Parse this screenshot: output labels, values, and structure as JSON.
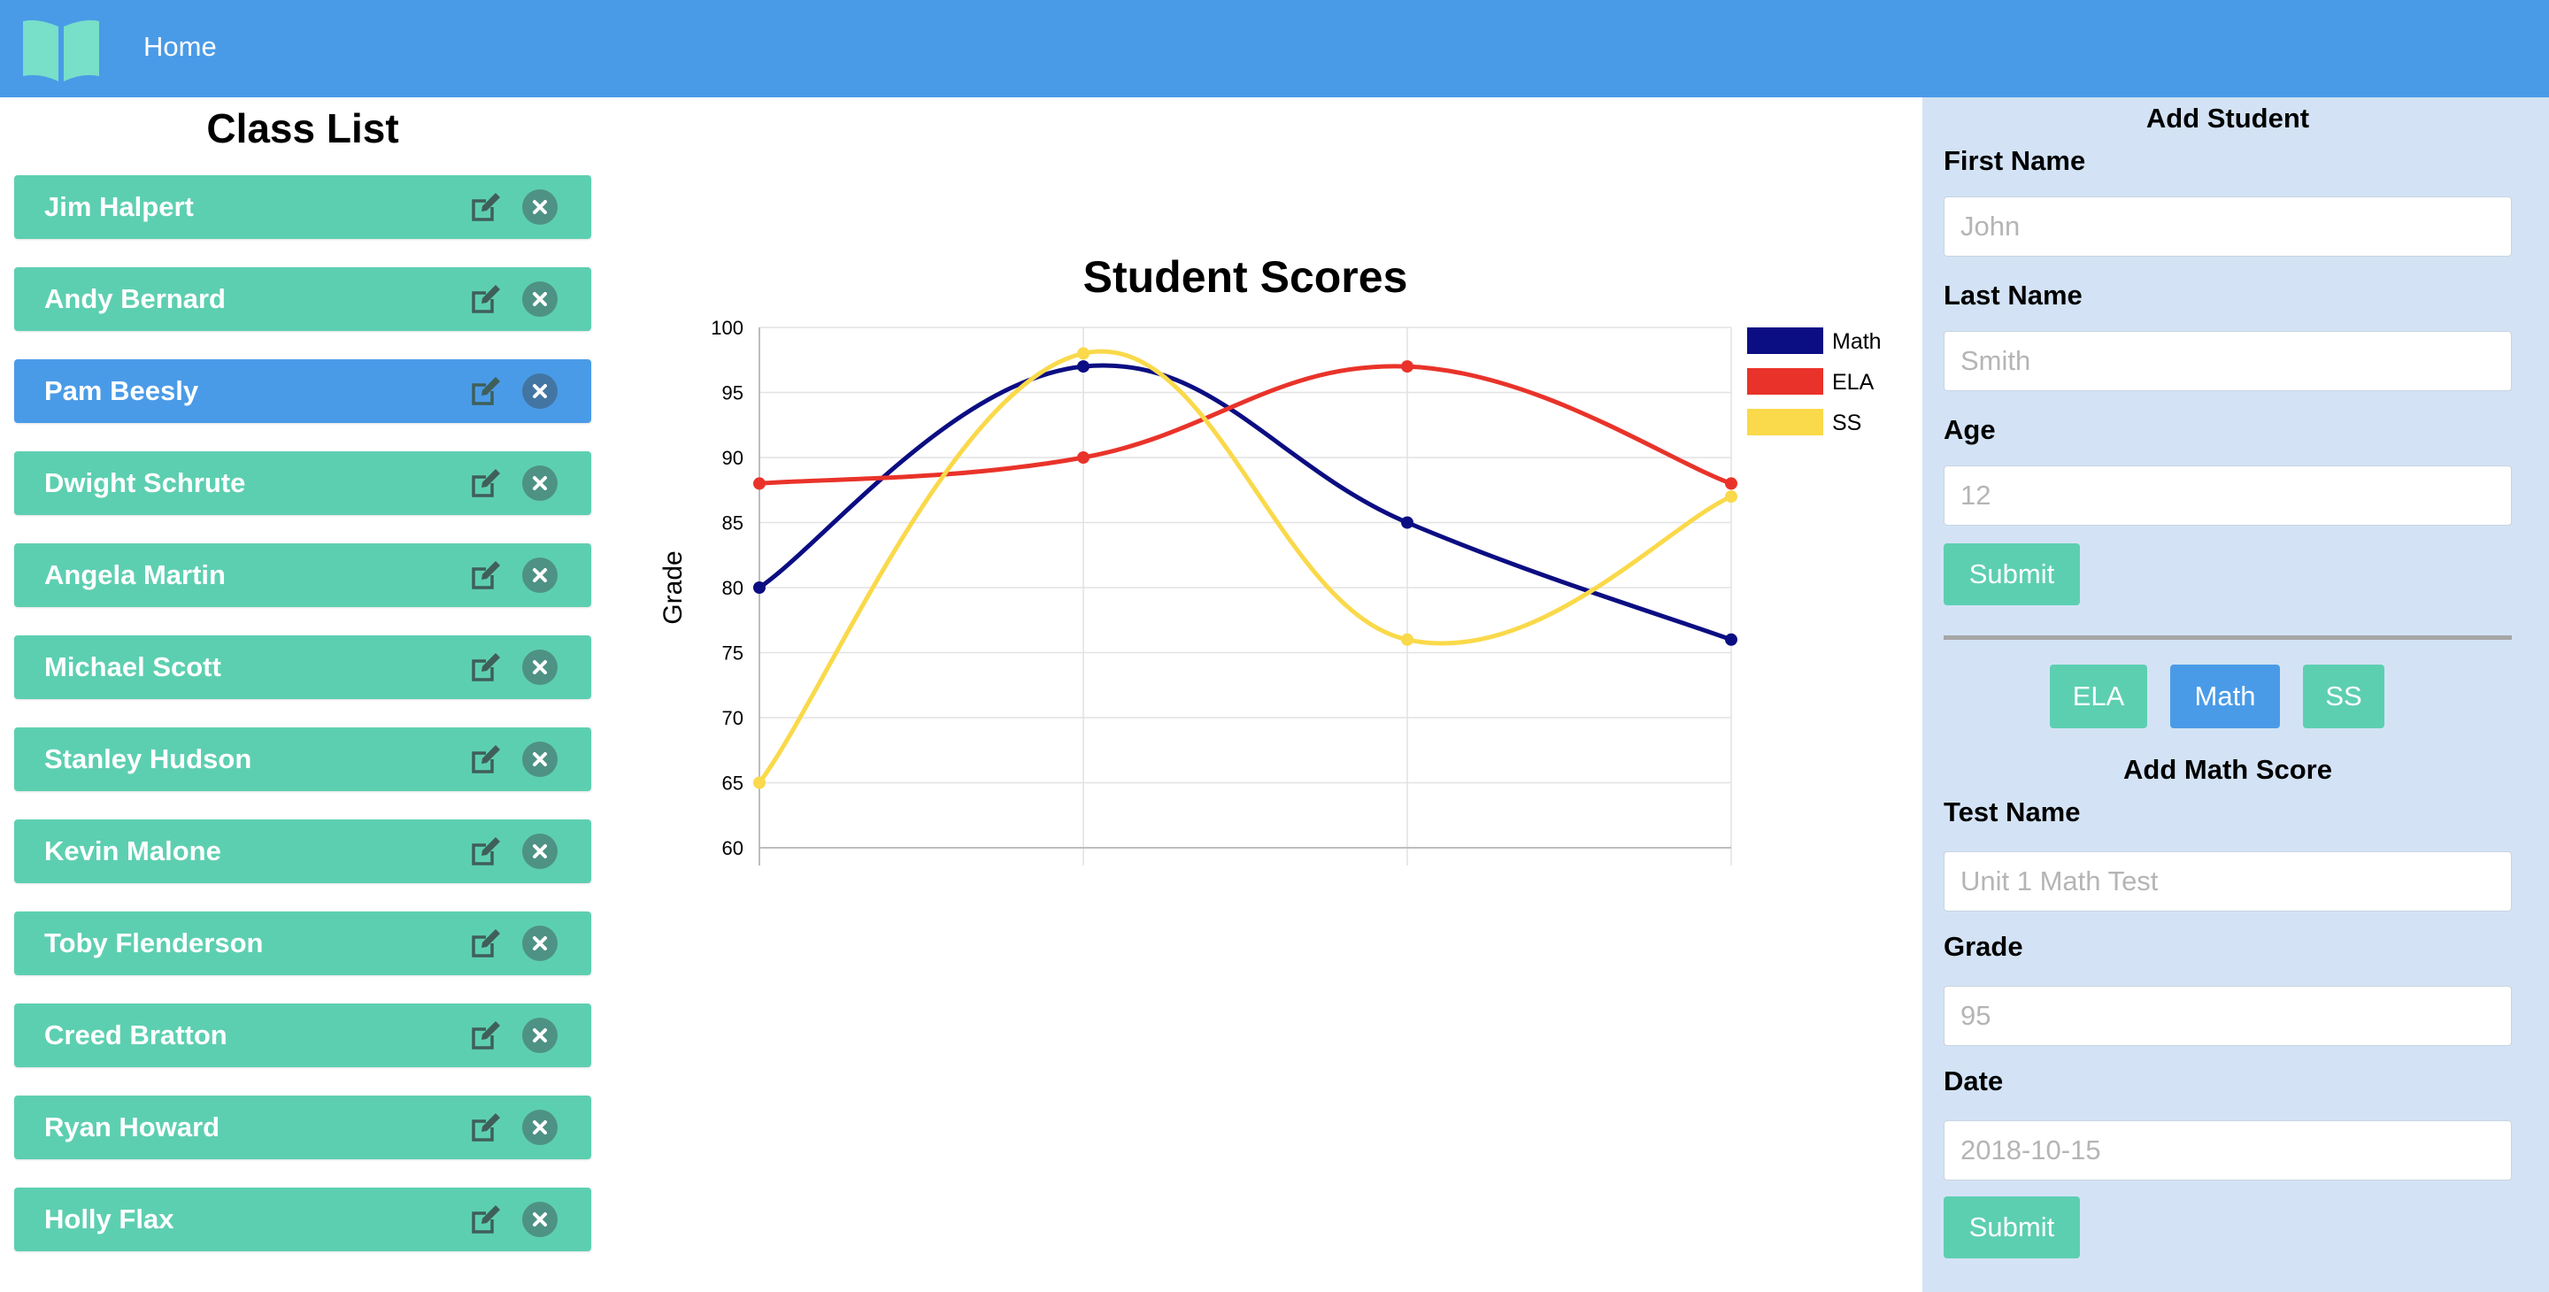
{
  "nav": {
    "home_label": "Home"
  },
  "class_list": {
    "title": "Class List",
    "selected_index": 2,
    "students": [
      "Jim Halpert",
      "Andy Bernard",
      "Pam Beesly",
      "Dwight Schrute",
      "Angela Martin",
      "Michael Scott",
      "Stanley Hudson",
      "Kevin Malone",
      "Toby Flenderson",
      "Creed Bratton",
      "Ryan Howard",
      "Holly Flax"
    ]
  },
  "chart_data": {
    "type": "line",
    "title": "Student Scores",
    "ylabel": "Grade",
    "xlabel": "",
    "ylim": [
      60,
      100
    ],
    "yticks": [
      100,
      95,
      90,
      85,
      80,
      75,
      70,
      65,
      60
    ],
    "x": [
      1,
      2,
      3,
      4
    ],
    "grid": true,
    "legend_position": "top-right",
    "series": [
      {
        "name": "Math",
        "color": "#0b0d82",
        "values": [
          80,
          97,
          85,
          76
        ]
      },
      {
        "name": "ELA",
        "color": "#e9332a",
        "values": [
          88,
          90,
          97,
          88
        ]
      },
      {
        "name": "SS",
        "color": "#fad94a",
        "values": [
          65,
          98,
          76,
          87
        ]
      }
    ]
  },
  "add_student": {
    "title": "Add Student",
    "first_name_label": "First Name",
    "first_name_placeholder": "John",
    "last_name_label": "Last Name",
    "last_name_placeholder": "Smith",
    "age_label": "Age",
    "age_placeholder": "12",
    "submit_label": "Submit"
  },
  "subjects": {
    "ela": "ELA",
    "math": "Math",
    "ss": "SS",
    "active": "Math"
  },
  "add_score": {
    "title": "Add Math Score",
    "test_name_label": "Test Name",
    "test_name_placeholder": "Unit 1 Math Test",
    "grade_label": "Grade",
    "grade_placeholder": "95",
    "date_label": "Date",
    "date_placeholder": "2018-10-15",
    "submit_label": "Submit"
  },
  "colors": {
    "nav_blue": "#4a9be7",
    "teal": "#5dcfb1",
    "panel_bg": "#d3e3f5",
    "logo_teal": "#78dfc9"
  },
  "icons": {
    "logo": "open-book-icon",
    "edit": "edit-icon",
    "delete": "close-circle-icon"
  }
}
